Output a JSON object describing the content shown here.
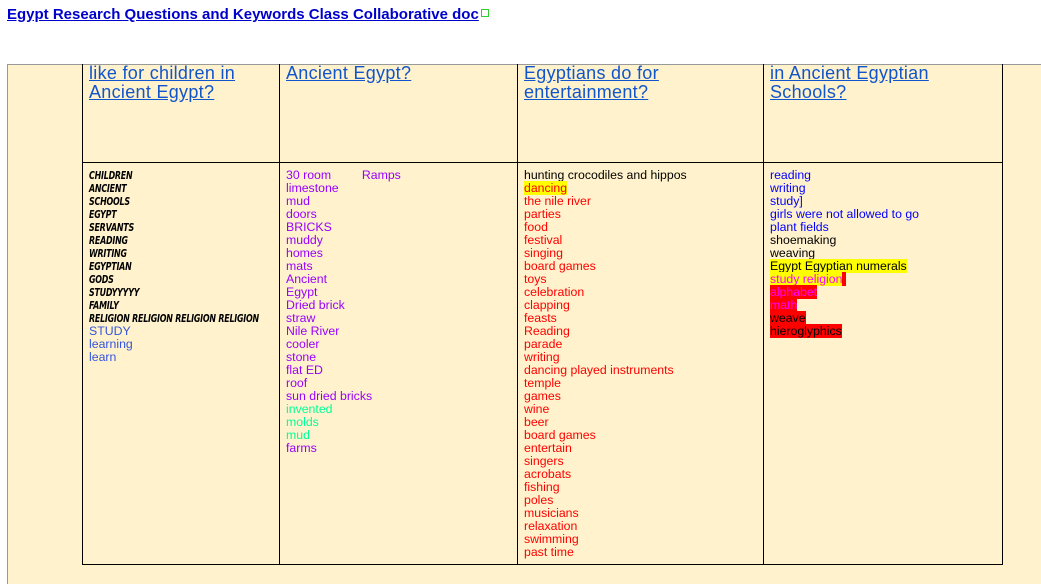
{
  "title": "Egypt Research Questions and Keywords Class Collaborative doc",
  "columns": [
    {
      "header": "like for children in Ancient Egypt?",
      "items": [
        {
          "text": "CHILDREN",
          "color": "#000000",
          "style": "kw"
        },
        {
          "text": "ANCIENT",
          "color": "#000000",
          "style": "kw"
        },
        {
          "text": "SCHOOLS",
          "color": "#000000",
          "style": "kw"
        },
        {
          "text": "EGYPT",
          "color": "#000000",
          "style": "kw"
        },
        {
          "text": "SERVANTS",
          "color": "#000000",
          "style": "kw"
        },
        {
          "text": "READING",
          "color": "#000000",
          "style": "kw"
        },
        {
          "text": "WRITING",
          "color": "#000000",
          "style": "kw"
        },
        {
          "text": "EGYPTIAN",
          "color": "#000000",
          "style": "kw"
        },
        {
          "text": "GODS",
          "color": "#000000",
          "style": "kw"
        },
        {
          "text": "STUDYYYYY",
          "color": "#000000",
          "style": "kw"
        },
        {
          "text": "FAMILY",
          "color": "#000000",
          "style": "kw"
        },
        {
          "text": "RELIGION RELIGION RELIGION RELIGION",
          "color": "#000000",
          "style": "kw"
        },
        {
          "text": "STUDY",
          "color": "#3355dd"
        },
        {
          "text": "learning",
          "color": "#3355dd"
        },
        {
          "text": "learn",
          "color": "#3355dd"
        }
      ]
    },
    {
      "header": "Ancient Egypt?",
      "items": [
        {
          "text": "30 room         Ramps",
          "color": "#9900ff"
        },
        {
          "text": "limestone",
          "color": "#9900ff"
        },
        {
          "text": "mud",
          "color": "#9900ff"
        },
        {
          "text": "doors",
          "color": "#9900ff"
        },
        {
          "text": "BRICKS",
          "color": "#9900ff"
        },
        {
          "text": "muddy",
          "color": "#9900ff"
        },
        {
          "text": "homes",
          "color": "#9900ff"
        },
        {
          "text": "mats",
          "color": "#9900ff"
        },
        {
          "text": "Ancient",
          "color": "#9900ff"
        },
        {
          "text": "Egypt",
          "color": "#9900ff"
        },
        {
          "text": "Dried brick",
          "color": "#9900ff"
        },
        {
          "text": "straw",
          "color": "#9900ff"
        },
        {
          "text": "Nile River",
          "color": "#9900ff"
        },
        {
          "text": "cooler",
          "color": "#9900ff"
        },
        {
          "text": "stone",
          "color": "#9900ff"
        },
        {
          "text": "flat ED",
          "color": "#9900ff"
        },
        {
          "text": "roof",
          "color": "#9900ff"
        },
        {
          "text": "sun dried bricks",
          "color": "#9900ff"
        },
        {
          "text": "invented",
          "color": "#00ff99"
        },
        {
          "text": "molds",
          "color": "#00ff99"
        },
        {
          "text": "mud",
          "color": "#00ff99"
        },
        {
          "text": "farms",
          "color": "#9900ff"
        }
      ]
    },
    {
      "header": "Egyptians do for entertainment?",
      "items": [
        {
          "text": "hunting crocodiles and hippos",
          "color": "#000000"
        },
        {
          "text": "dancing",
          "color": "#ff0000",
          "bg": "#ffff00"
        },
        {
          "text": "the nile river",
          "color": "#ff0000"
        },
        {
          "text": "parties",
          "color": "#ff0000"
        },
        {
          "text": "food",
          "color": "#ff0000"
        },
        {
          "text": "festival",
          "color": "#ff0000"
        },
        {
          "text": "singing",
          "color": "#ff0000"
        },
        {
          "text": "board games",
          "color": "#ff0000"
        },
        {
          "text": "toys",
          "color": "#ff0000"
        },
        {
          "text": "celebration",
          "color": "#ff0000"
        },
        {
          "text": "clapping",
          "color": "#ff0000"
        },
        {
          "text": "feasts",
          "color": "#ff0000"
        },
        {
          "text": "Reading",
          "color": "#ff0000"
        },
        {
          "text": "parade",
          "color": "#ff0000"
        },
        {
          "text": "writing",
          "color": "#ff0000"
        },
        {
          "text": "dancing played instruments",
          "color": "#ff0000"
        },
        {
          "text": "temple",
          "color": "#ff0000"
        },
        {
          "text": "games",
          "color": "#ff0000"
        },
        {
          "text": "wine",
          "color": "#ff0000"
        },
        {
          "text": "beer",
          "color": "#ff0000"
        },
        {
          "text": "board games",
          "color": "#ff0000"
        },
        {
          "text": "entertain",
          "color": "#ff0000"
        },
        {
          "text": "singers",
          "color": "#ff0000"
        },
        {
          "text": "acrobats",
          "color": "#ff0000"
        },
        {
          "text": "fishing",
          "color": "#ff0000"
        },
        {
          "text": "poles",
          "color": "#ff0000"
        },
        {
          "text": "musicians",
          "color": "#ff0000"
        },
        {
          "text": "relaxation",
          "color": "#ff0000"
        },
        {
          "text": "swimming",
          "color": "#ff0000"
        },
        {
          "text": "past time",
          "color": "#ff0000"
        }
      ]
    },
    {
      "header": "in Ancient Egyptian Schools?",
      "items": [
        {
          "text": "reading",
          "color": "#0000ff"
        },
        {
          "text": "writing",
          "color": "#0000ff"
        },
        {
          "text": "study]",
          "color": "#0000ff"
        },
        {
          "text": "girls were not allowed to go",
          "color": "#0000ff"
        },
        {
          "text": "plant fields",
          "color": "#0000ff"
        },
        {
          "text": "shoemaking",
          "color": "#000000"
        },
        {
          "text": "weaving",
          "color": "#000000"
        },
        {
          "text": "Egypt Egyptian numerals",
          "color": "#000000",
          "bg": "#ffff00"
        },
        {
          "text": "study religion",
          "color": "#ff00ff",
          "bg": "#ffff00",
          "trail": "#ff0000"
        },
        {
          "text": "alphabet",
          "color": "#ff00ff",
          "bg": "#ff0000"
        },
        {
          "text": "math",
          "color": "#ff00ff",
          "bg": "#ff0000"
        },
        {
          "text": "weave",
          "color": "#000000",
          "bg": "#ff0000"
        },
        {
          "text": "hieroglyphics",
          "color": "#000000",
          "bg": "#ff0000"
        }
      ]
    }
  ]
}
